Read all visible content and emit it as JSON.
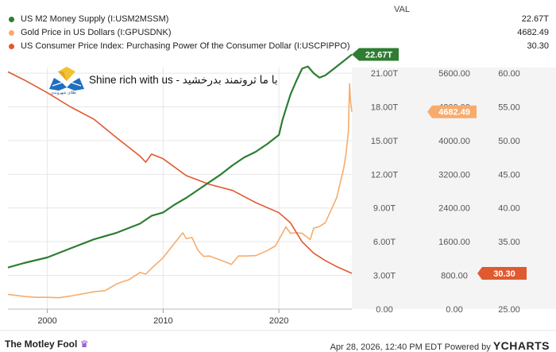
{
  "header": {
    "val_label": "VAL",
    "series": [
      {
        "name": "US M2 Money Supply (I:USM2MSSM)",
        "value": "22.67T",
        "color": "#2e7d32"
      },
      {
        "name": "Gold Price in US Dollars (I:GPUSDNK)",
        "value": "4682.49",
        "color": "#f6ac6e"
      },
      {
        "name": "US Consumer Price Index: Purchasing Power Of the Consumer Dollar (I:USCPIPPO)",
        "value": "30.30",
        "color": "#e05a2f"
      }
    ]
  },
  "watermark": {
    "text": "Shine rich with us - با ما ثروتمند بدرخشید",
    "subtext": "طلای شهروندی"
  },
  "footer": {
    "brand": "The Motley Fool",
    "timestamp": "Apr 28, 2026, 12:40 PM EDT Powered by",
    "ycharts": "YCHARTS"
  },
  "chart_data": {
    "type": "line",
    "x_ticks": [
      "2000",
      "2010",
      "2020"
    ],
    "x_range": [
      1996.6,
      2026.3
    ],
    "axes": [
      {
        "id": "m2",
        "ticks": [
          "0.00",
          "3.00T",
          "6.00T",
          "9.00T",
          "12.00T",
          "15.00T",
          "18.00T",
          "21.00T"
        ],
        "range": [
          0,
          21.5
        ],
        "tick_values": [
          0,
          3,
          6,
          9,
          12,
          15,
          18,
          21
        ]
      },
      {
        "id": "gold",
        "ticks": [
          "0.00",
          "800.00",
          "1600.00",
          "2400.00",
          "3200.00",
          "4000.00",
          "4800.00",
          "5600.00"
        ],
        "range": [
          0,
          5733
        ],
        "tick_values": [
          0,
          800,
          1600,
          2400,
          3200,
          4000,
          4800,
          5600
        ]
      },
      {
        "id": "cpi",
        "ticks": [
          "25.00",
          "30.00",
          "35.00",
          "40.00",
          "45.00",
          "50.00",
          "55.00",
          "60.00"
        ],
        "range": [
          25,
          60.833
        ],
        "tick_values": [
          25,
          30,
          35,
          40,
          45,
          50,
          55,
          60
        ]
      }
    ],
    "series": [
      {
        "name": "US M2 Money Supply (I:USM2MSSM)",
        "axis": "m2",
        "color": "#2e7d32",
        "end_label": "22.67T",
        "x": [
          1996.6,
          1998,
          2000,
          2002,
          2004,
          2006,
          2008,
          2009,
          2010,
          2011,
          2012,
          2013,
          2014,
          2015,
          2016,
          2017,
          2018,
          2019,
          2020.0,
          2020.3,
          2020.6,
          2021,
          2021.5,
          2022,
          2022.5,
          2023.0,
          2023.5,
          2024,
          2024.5,
          2025,
          2025.5,
          2026.3
        ],
        "y": [
          3.7,
          4.1,
          4.6,
          5.4,
          6.2,
          6.8,
          7.6,
          8.3,
          8.6,
          9.3,
          9.9,
          10.6,
          11.3,
          12.0,
          12.8,
          13.5,
          14.0,
          14.7,
          15.5,
          16.8,
          17.8,
          19.1,
          20.3,
          21.4,
          21.6,
          21.0,
          20.6,
          20.8,
          21.2,
          21.6,
          22.0,
          22.67
        ]
      },
      {
        "name": "Gold Price in US Dollars (I:GPUSDNK)",
        "axis": "gold",
        "color": "#f6ac6e",
        "end_label": "4682.49",
        "x": [
          1996.6,
          1998,
          1999,
          2000,
          2001,
          2002,
          2003,
          2004,
          2005,
          2006,
          2006.5,
          2007,
          2008,
          2008.5,
          2009,
          2010,
          2011,
          2011.7,
          2012,
          2012.5,
          2013,
          2013.5,
          2014,
          2015,
          2015.9,
          2016.5,
          2017,
          2018,
          2019,
          2019.7,
          2020.6,
          2021,
          2021.5,
          2022,
          2022.7,
          2023,
          2023.5,
          2024,
          2024.5,
          2025,
          2025.3,
          2025.6,
          2025.8,
          2026.0,
          2026.1,
          2026.2,
          2026.3
        ],
        "y": [
          350,
          300,
          280,
          280,
          270,
          310,
          360,
          410,
          440,
          600,
          650,
          690,
          870,
          830,
          970,
          1220,
          1570,
          1810,
          1670,
          1700,
          1400,
          1250,
          1260,
          1160,
          1060,
          1260,
          1260,
          1270,
          1390,
          1500,
          1950,
          1800,
          1810,
          1800,
          1650,
          1920,
          1960,
          2050,
          2350,
          2650,
          3000,
          3350,
          3700,
          4200,
          5350,
          4900,
          4682
        ]
      },
      {
        "name": "US Consumer Price Index: Purchasing Power Of the Consumer Dollar (I:USCPIPPO)",
        "axis": "cpi",
        "color": "#e05a2f",
        "end_label": "30.30",
        "x": [
          1996.6,
          1998,
          2000,
          2002,
          2004,
          2006,
          2008,
          2008.5,
          2009,
          2010,
          2012,
          2014,
          2016,
          2018,
          2020,
          2021,
          2022,
          2023,
          2024,
          2025,
          2026.3
        ],
        "y": [
          60.2,
          59.0,
          57.1,
          55.0,
          53.2,
          50.4,
          47.7,
          46.8,
          48.0,
          47.3,
          44.8,
          43.5,
          42.6,
          40.8,
          39.3,
          37.8,
          35.0,
          33.3,
          32.2,
          31.3,
          30.3
        ]
      }
    ]
  }
}
